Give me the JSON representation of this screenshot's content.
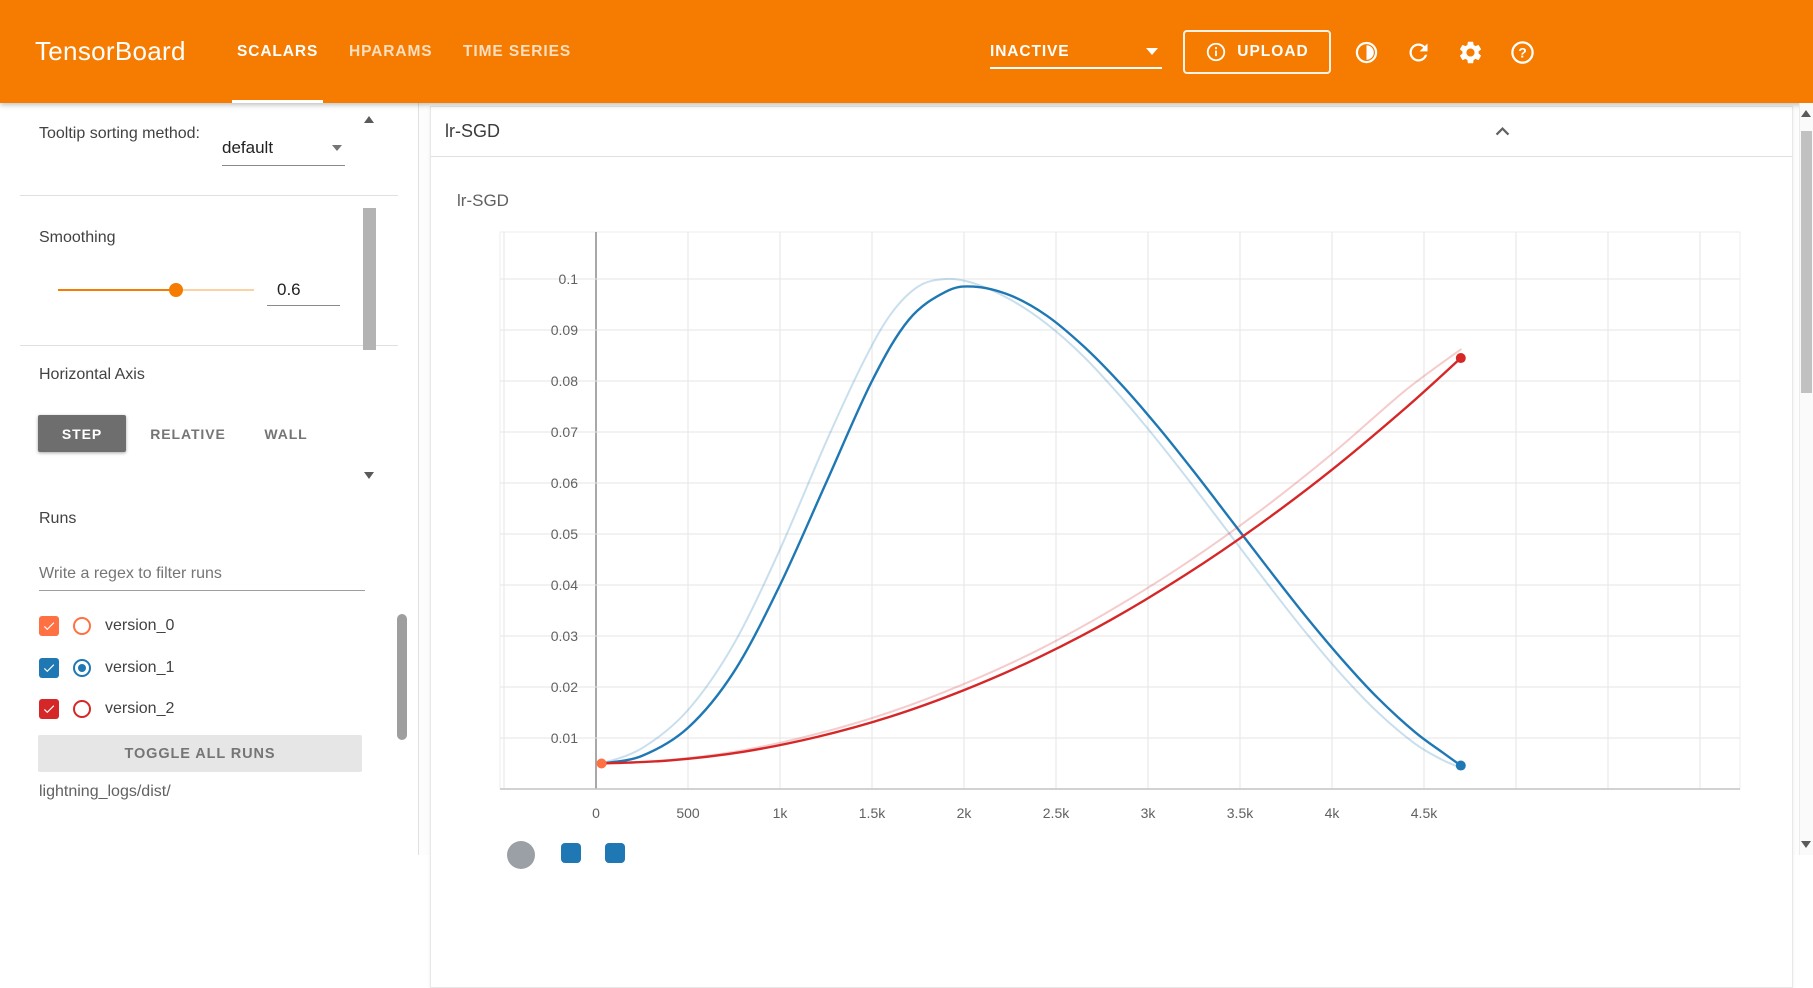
{
  "header": {
    "logo": "TensorBoard",
    "tabs": [
      {
        "label": "SCALARS"
      },
      {
        "label": "HPARAMS"
      },
      {
        "label": "TIME SERIES"
      }
    ],
    "status": "INACTIVE",
    "upload_label": "UPLOAD"
  },
  "sidebar": {
    "tooltip_sorting_label": "Tooltip sorting method:",
    "tooltip_sorting_value": "default",
    "smoothing_label": "Smoothing",
    "smoothing_value": "0.6",
    "horizontal_axis_label": "Horizontal Axis",
    "axis_step": "STEP",
    "axis_relative": "RELATIVE",
    "axis_wall": "WALL",
    "runs_label": "Runs",
    "runs_filter_placeholder": "Write a regex to filter runs",
    "runs": [
      {
        "name": "version_0",
        "color": "#ff7043",
        "checked": true,
        "radio_selected": false
      },
      {
        "name": "version_1",
        "color": "#1f78b4",
        "checked": true,
        "radio_selected": true
      },
      {
        "name": "version_2",
        "color": "#d62728",
        "checked": true,
        "radio_selected": false
      }
    ],
    "toggle_all_label": "TOGGLE ALL RUNS",
    "logdir": "lightning_logs/dist/"
  },
  "main": {
    "card_title": "lr-SGD"
  },
  "chart_data": {
    "type": "line",
    "title": "lr-SGD",
    "ylim": [
      0,
      0.109
    ],
    "xlim_steps": [
      -500,
      6200
    ],
    "grid": true,
    "x_ticks": [
      {
        "value": 0,
        "label": "0"
      },
      {
        "value": 500,
        "label": "500"
      },
      {
        "value": 1000,
        "label": "1k"
      },
      {
        "value": 1500,
        "label": "1.5k"
      },
      {
        "value": 2000,
        "label": "2k"
      },
      {
        "value": 2500,
        "label": "2.5k"
      },
      {
        "value": 3000,
        "label": "3k"
      },
      {
        "value": 3500,
        "label": "3.5k"
      },
      {
        "value": 4000,
        "label": "4k"
      },
      {
        "value": 4500,
        "label": "4.5k"
      }
    ],
    "y_ticks": [
      {
        "value": 0.01,
        "label": "0.01"
      },
      {
        "value": 0.02,
        "label": "0.02"
      },
      {
        "value": 0.03,
        "label": "0.03"
      },
      {
        "value": 0.04,
        "label": "0.04"
      },
      {
        "value": 0.05,
        "label": "0.05"
      },
      {
        "value": 0.06,
        "label": "0.06"
      },
      {
        "value": 0.07,
        "label": "0.07"
      },
      {
        "value": 0.08,
        "label": "0.08"
      },
      {
        "value": 0.09,
        "label": "0.09"
      },
      {
        "value": 0.1,
        "label": "0.1"
      }
    ],
    "series": [
      {
        "name": "version_1",
        "color": "#1f78b4",
        "smoothed": [
          [
            30,
            0.005
          ],
          [
            250,
            0.0065
          ],
          [
            500,
            0.012
          ],
          [
            750,
            0.023
          ],
          [
            1000,
            0.04
          ],
          [
            1250,
            0.06
          ],
          [
            1500,
            0.08
          ],
          [
            1700,
            0.092
          ],
          [
            1900,
            0.0975
          ],
          [
            2050,
            0.0985
          ],
          [
            2250,
            0.0968
          ],
          [
            2450,
            0.0928
          ],
          [
            2650,
            0.0868
          ],
          [
            2850,
            0.0795
          ],
          [
            3050,
            0.0712
          ],
          [
            3250,
            0.0622
          ],
          [
            3450,
            0.0528
          ],
          [
            3650,
            0.0434
          ],
          [
            3850,
            0.0342
          ],
          [
            4050,
            0.0256
          ],
          [
            4250,
            0.0178
          ],
          [
            4450,
            0.0112
          ],
          [
            4600,
            0.0072
          ],
          [
            4700,
            0.0046
          ]
        ],
        "original": [
          [
            30,
            0.005
          ],
          [
            250,
            0.008
          ],
          [
            500,
            0.0155
          ],
          [
            750,
            0.0285
          ],
          [
            1000,
            0.047
          ],
          [
            1250,
            0.068
          ],
          [
            1450,
            0.0835
          ],
          [
            1600,
            0.093
          ],
          [
            1750,
            0.0985
          ],
          [
            1900,
            0.1
          ],
          [
            2050,
            0.0992
          ],
          [
            2250,
            0.096
          ],
          [
            2450,
            0.0912
          ],
          [
            2650,
            0.0848
          ],
          [
            2850,
            0.077
          ],
          [
            3050,
            0.0684
          ],
          [
            3250,
            0.0592
          ],
          [
            3450,
            0.0497
          ],
          [
            3650,
            0.0402
          ],
          [
            3850,
            0.031
          ],
          [
            4050,
            0.0225
          ],
          [
            4250,
            0.015
          ],
          [
            4450,
            0.0089
          ],
          [
            4600,
            0.0057
          ],
          [
            4700,
            0.0042
          ]
        ]
      },
      {
        "name": "version_2",
        "color": "#d62728",
        "smoothed": [
          [
            30,
            0.005
          ],
          [
            400,
            0.0056
          ],
          [
            800,
            0.0073
          ],
          [
            1200,
            0.0102
          ],
          [
            1600,
            0.0142
          ],
          [
            2000,
            0.0194
          ],
          [
            2400,
            0.0257
          ],
          [
            2800,
            0.0332
          ],
          [
            3200,
            0.0419
          ],
          [
            3600,
            0.0517
          ],
          [
            4000,
            0.0626
          ],
          [
            4400,
            0.0747
          ],
          [
            4700,
            0.0845
          ]
        ],
        "original": [
          [
            30,
            0.005
          ],
          [
            400,
            0.0057
          ],
          [
            800,
            0.0076
          ],
          [
            1200,
            0.0108
          ],
          [
            1600,
            0.0151
          ],
          [
            2000,
            0.0206
          ],
          [
            2400,
            0.0272
          ],
          [
            2800,
            0.0351
          ],
          [
            3200,
            0.0441
          ],
          [
            3600,
            0.0543
          ],
          [
            4000,
            0.0657
          ],
          [
            4400,
            0.0782
          ],
          [
            4700,
            0.0862
          ]
        ]
      },
      {
        "name": "version_0",
        "color": "#ff7043",
        "smoothed": [
          [
            30,
            0.005
          ]
        ],
        "original": [
          [
            30,
            0.005
          ]
        ]
      }
    ],
    "end_markers": [
      {
        "run": "version_0",
        "step": 30,
        "value": 0.005,
        "color": "#ff7043"
      },
      {
        "run": "version_1",
        "step": 4700,
        "value": 0.0046,
        "color": "#1f78b4"
      },
      {
        "run": "version_2",
        "step": 4700,
        "value": 0.0845,
        "color": "#d62728"
      }
    ]
  }
}
